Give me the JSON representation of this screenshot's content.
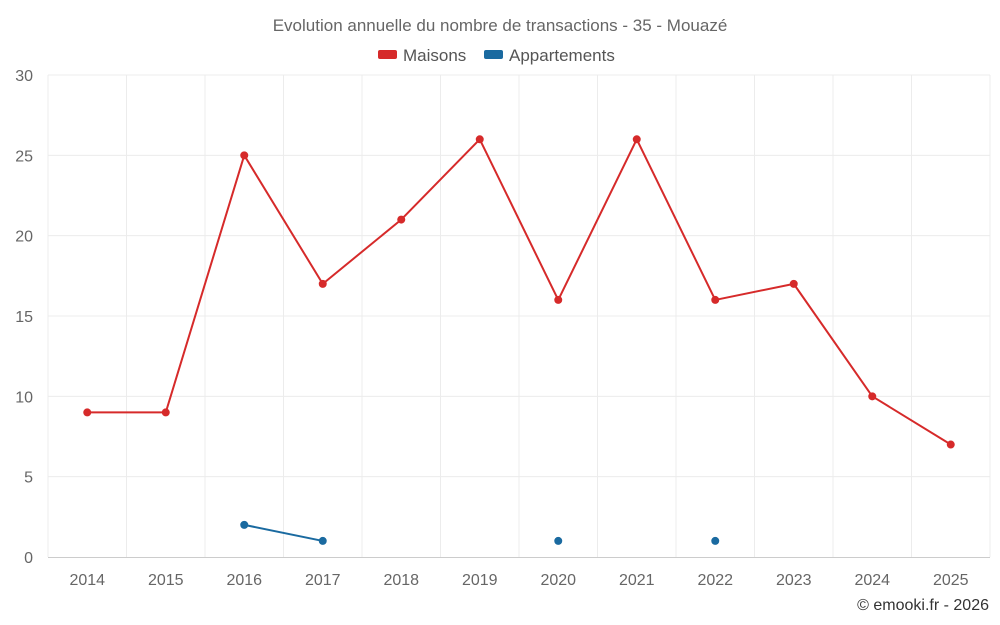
{
  "chart_data": {
    "type": "line",
    "title": "Evolution annuelle du nombre de transactions - 35 - Mouazé",
    "categories": [
      "2014",
      "2015",
      "2016",
      "2017",
      "2018",
      "2019",
      "2020",
      "2021",
      "2022",
      "2023",
      "2024",
      "2025"
    ],
    "ylim": [
      0,
      30
    ],
    "yticks": [
      "0",
      "5",
      "10",
      "15",
      "20",
      "25",
      "30"
    ],
    "grid": true,
    "legend_position": "top-center",
    "series": [
      {
        "name": "Maisons",
        "color": "#d62a2a",
        "values": [
          9,
          9,
          25,
          17,
          21,
          26,
          16,
          26,
          16,
          17,
          10,
          7
        ]
      },
      {
        "name": "Appartements",
        "color": "#1a6aa0",
        "values": [
          null,
          null,
          2,
          1,
          null,
          null,
          1,
          null,
          1,
          null,
          null,
          null
        ]
      }
    ],
    "credit": "© emooki.fr - 2026"
  }
}
